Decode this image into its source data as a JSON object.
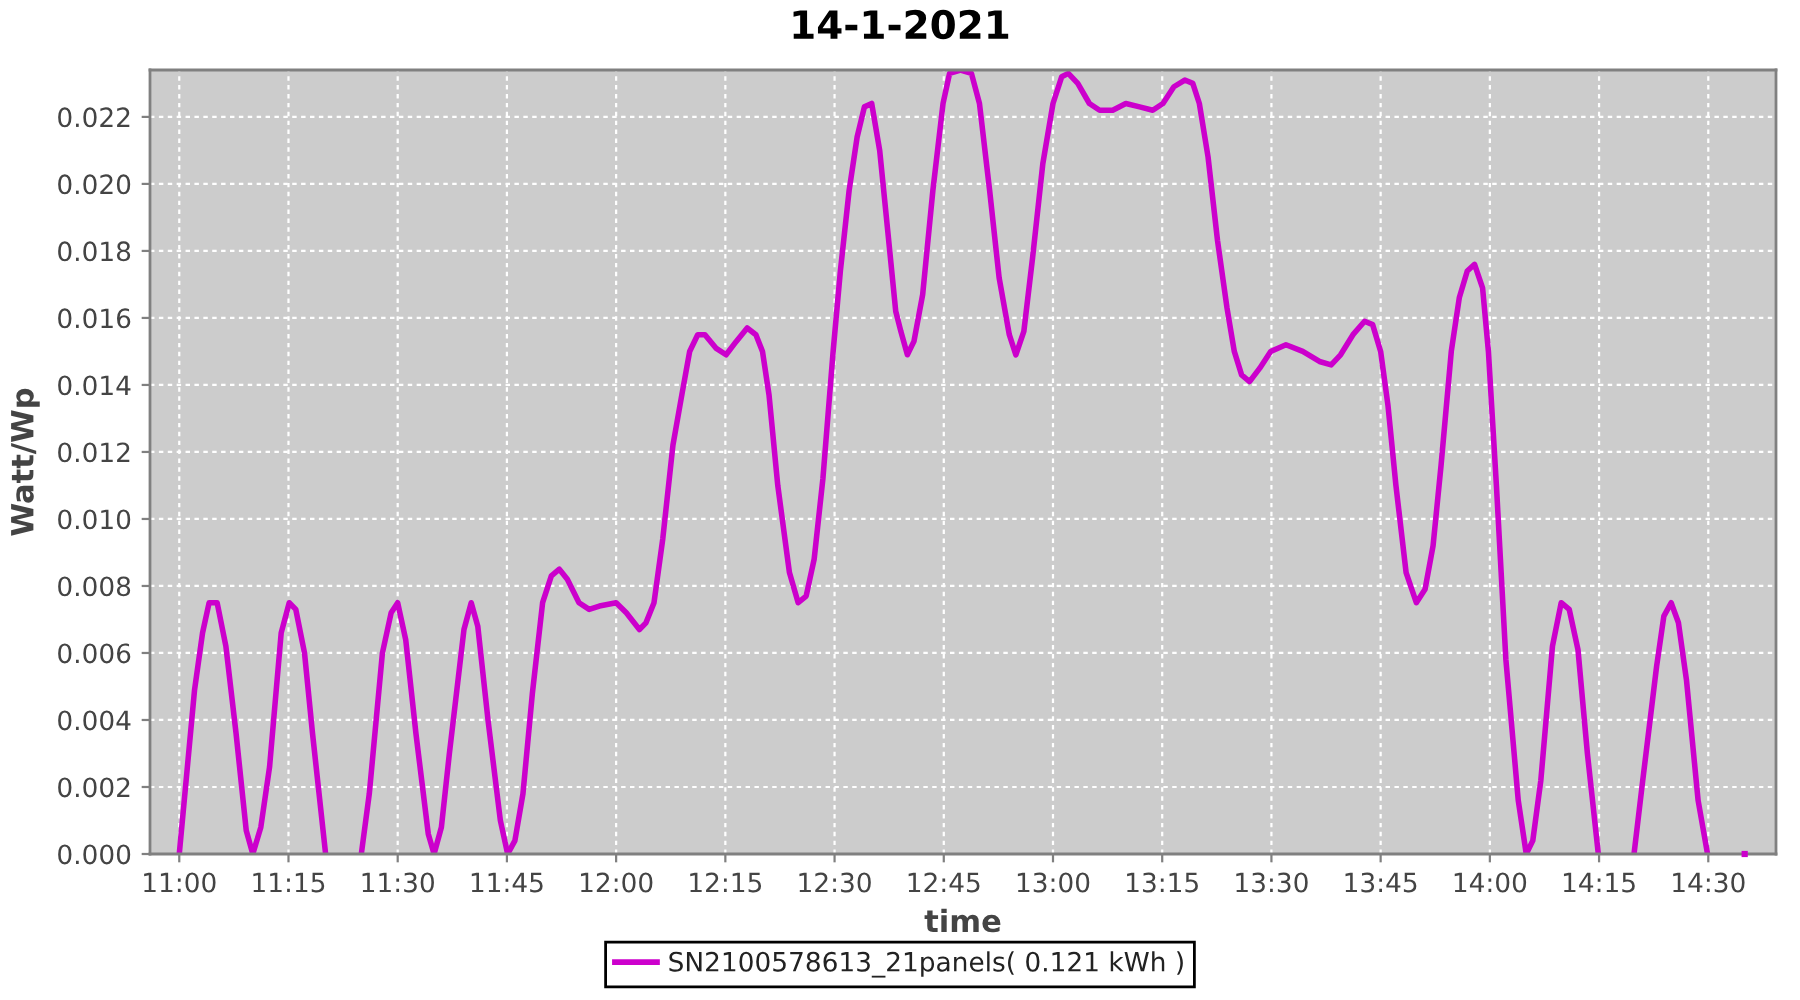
{
  "chart_data": {
    "type": "line",
    "title": "14-1-2021",
    "xlabel": "time",
    "ylabel": "Watt/Wp",
    "xlim": [
      10.933,
      14.655
    ],
    "ylim": [
      0,
      0.0234
    ],
    "xticks": [
      {
        "value": 11,
        "label": "11:00"
      },
      {
        "value": 11.25,
        "label": "11:15"
      },
      {
        "value": 11.5,
        "label": "11:30"
      },
      {
        "value": 11.75,
        "label": "11:45"
      },
      {
        "value": 12,
        "label": "12:00"
      },
      {
        "value": 12.25,
        "label": "12:15"
      },
      {
        "value": 12.5,
        "label": "12:30"
      },
      {
        "value": 12.75,
        "label": "12:45"
      },
      {
        "value": 13,
        "label": "13:00"
      },
      {
        "value": 13.25,
        "label": "13:15"
      },
      {
        "value": 13.5,
        "label": "13:30"
      },
      {
        "value": 13.75,
        "label": "13:45"
      },
      {
        "value": 14,
        "label": "14:00"
      },
      {
        "value": 14.25,
        "label": "14:15"
      },
      {
        "value": 14.5,
        "label": "14:30"
      }
    ],
    "yticks": [
      {
        "value": 0,
        "label": "0.000"
      },
      0.002,
      0.004,
      0.006,
      0.008,
      {
        "value": 0.01,
        "label": "0.010"
      },
      0.012,
      0.014,
      0.016,
      0.018,
      {
        "value": 0.02,
        "label": "0.020"
      },
      0.022
    ],
    "grid": true,
    "legend": "bottom",
    "line_style": "solid",
    "series": [
      {
        "name": "SN2100578613_21panels( 0.121 kWh )",
        "color": "#cc00cc",
        "x": [
          11.0,
          11.035,
          11.0533,
          11.0683,
          11.0867,
          11.1067,
          11.13,
          11.1533,
          11.1683,
          11.1867,
          11.2067,
          11.2333,
          11.2517,
          11.2667,
          11.2867,
          11.305,
          11.335,
          11.375,
          11.4167,
          11.435,
          11.465,
          11.485,
          11.5,
          11.5183,
          11.5417,
          11.57,
          11.5833,
          11.6,
          11.6183,
          11.6517,
          11.6683,
          11.6833,
          11.7067,
          11.735,
          11.7517,
          11.7683,
          11.7867,
          11.8083,
          11.8317,
          11.8517,
          11.87,
          11.8883,
          11.915,
          11.9383,
          11.9617,
          12.0,
          12.0233,
          12.0533,
          12.0683,
          12.0867,
          12.1067,
          12.13,
          12.1517,
          12.1683,
          12.1867,
          12.2033,
          12.2283,
          12.2517,
          12.275,
          12.3,
          12.32,
          12.335,
          12.35,
          12.37,
          12.3967,
          12.4167,
          12.435,
          12.4533,
          12.4733,
          12.4967,
          12.5133,
          12.5333,
          12.5517,
          12.5683,
          12.585,
          12.6033,
          12.6217,
          12.64,
          12.6517,
          12.6667,
          12.6817,
          12.7017,
          12.725,
          12.7483,
          12.7633,
          12.7883,
          12.8133,
          12.8317,
          12.855,
          12.8767,
          12.9,
          12.915,
          12.9333,
          12.9533,
          12.9767,
          13.0,
          13.02,
          13.035,
          13.0567,
          13.0833,
          13.1067,
          13.1367,
          13.1667,
          13.1983,
          13.2283,
          13.2517,
          13.2767,
          13.3017,
          13.32,
          13.335,
          13.355,
          13.3767,
          13.3983,
          13.415,
          13.4317,
          13.45,
          13.4733,
          13.4983,
          13.5333,
          13.5717,
          13.61,
          13.6367,
          13.6583,
          13.6867,
          13.7133,
          13.7317,
          13.75,
          13.7667,
          13.785,
          13.8083,
          13.8317,
          13.8517,
          13.87,
          13.8883,
          13.9117,
          13.93,
          13.9483,
          13.965,
          13.9833,
          13.9967,
          14.015,
          14.0367,
          14.065,
          14.0833,
          14.0983,
          14.1167,
          14.1433,
          14.1633,
          14.1817,
          14.2017,
          14.2233,
          14.2483,
          14.2917,
          14.33,
          14.35,
          14.3817,
          14.3983,
          14.415,
          14.4317,
          14.45,
          14.4767,
          14.4983
        ],
        "values": [
          0.0,
          0.0049,
          0.0066,
          0.0075,
          0.0075,
          0.0062,
          0.0036,
          0.0007,
          0.0,
          0.0008,
          0.0026,
          0.0066,
          0.0075,
          0.0073,
          0.006,
          0.0036,
          0.0,
          null,
          0.0,
          0.0018,
          0.006,
          0.0072,
          0.0075,
          0.0064,
          0.0036,
          0.0006,
          0.0,
          0.0008,
          0.003,
          0.0067,
          0.0075,
          0.0068,
          0.004,
          0.001,
          0.0,
          0.0004,
          0.0018,
          0.0048,
          0.0075,
          0.0083,
          0.0085,
          0.0082,
          0.0075,
          0.0073,
          0.0074,
          0.0075,
          0.0072,
          0.0067,
          0.0069,
          0.0075,
          0.0094,
          0.0122,
          0.0138,
          0.015,
          0.0155,
          0.0155,
          0.0151,
          0.0149,
          0.0153,
          0.0157,
          0.0155,
          0.015,
          0.0137,
          0.011,
          0.0084,
          0.0075,
          0.0077,
          0.0088,
          0.0112,
          0.015,
          0.0174,
          0.0198,
          0.0214,
          0.0223,
          0.0224,
          0.021,
          0.0186,
          0.0162,
          0.0156,
          0.0149,
          0.0153,
          0.0167,
          0.0198,
          0.0224,
          0.0233,
          0.0234,
          0.0233,
          0.0224,
          0.0198,
          0.0172,
          0.0155,
          0.0149,
          0.0156,
          0.0178,
          0.0206,
          0.0224,
          0.0232,
          0.0233,
          0.023,
          0.0224,
          0.0222,
          0.0222,
          0.0224,
          0.0223,
          0.0222,
          0.0224,
          0.0229,
          0.0231,
          0.023,
          0.0224,
          0.0208,
          0.0183,
          0.0163,
          0.015,
          0.0143,
          0.0141,
          0.0145,
          0.015,
          0.0152,
          0.015,
          0.0147,
          0.0146,
          0.0149,
          0.0155,
          0.0159,
          0.0158,
          0.015,
          0.0134,
          0.011,
          0.0084,
          0.0075,
          0.0079,
          0.0092,
          0.0116,
          0.015,
          0.0166,
          0.0174,
          0.0176,
          0.0169,
          0.015,
          0.011,
          0.0058,
          0.0016,
          0.0,
          0.0004,
          0.0022,
          0.0062,
          0.0075,
          0.0073,
          0.0061,
          0.003,
          0.0,
          null,
          0.0,
          0.0022,
          0.0056,
          0.0071,
          0.0075,
          0.0069,
          0.0052,
          0.0016,
          0.0
        ]
      },
      {
        "type": "scatter",
        "color": "#cc00cc",
        "marker": "square",
        "x": [
          14.5833
        ],
        "values": [
          0.0
        ]
      }
    ]
  }
}
